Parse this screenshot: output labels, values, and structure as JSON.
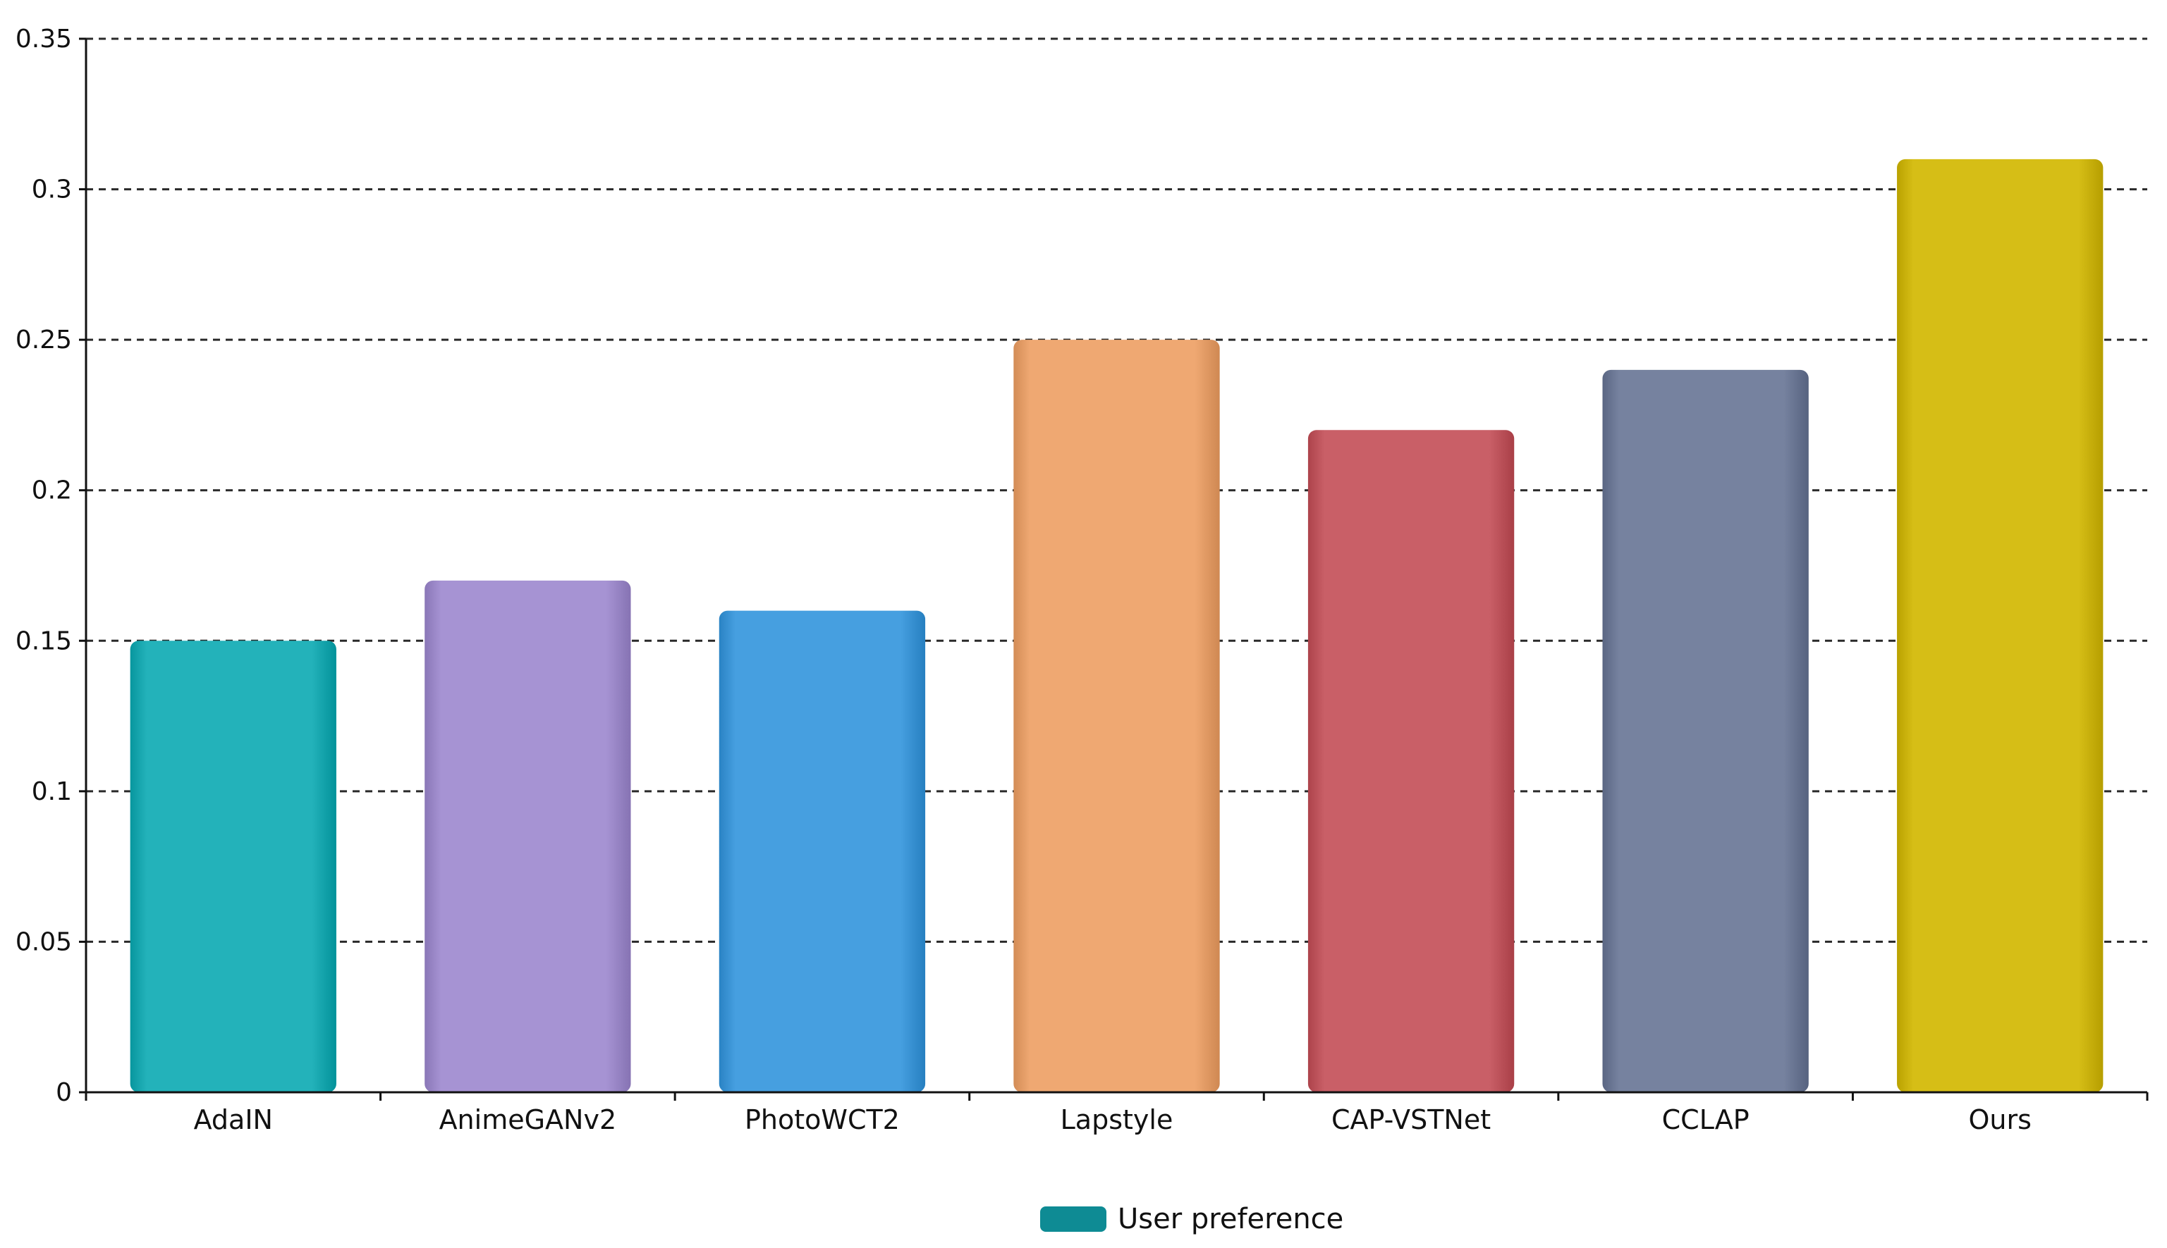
{
  "chart_data": {
    "type": "bar",
    "categories": [
      "AdaIN",
      "AnimeGANv2",
      "PhotoWCT2",
      "Lapstyle",
      "CAP-VSTNet",
      "CCLAP",
      "Ours"
    ],
    "series": [
      {
        "name": "User preference",
        "values": [
          0.15,
          0.17,
          0.16,
          0.25,
          0.22,
          0.24,
          0.31
        ]
      }
    ],
    "bar_colors": [
      "#23b2ba",
      "#a693d3",
      "#469fe0",
      "#efa872",
      "#c95f67",
      "#76829f",
      "#d6be16"
    ],
    "legend_color": "#0e8b94",
    "title": "",
    "xlabel": "",
    "ylabel": "",
    "ylim": [
      0,
      0.35
    ],
    "yticks": [
      0,
      0.05,
      0.1,
      0.15,
      0.2,
      0.25,
      0.3,
      0.35
    ],
    "ytick_labels": [
      "0",
      "0.05",
      "0.1",
      "0.15",
      "0.2",
      "0.25",
      "0.3",
      "0.35"
    ],
    "grid": "horizontal dashed",
    "legend_position": "bottom-center"
  }
}
